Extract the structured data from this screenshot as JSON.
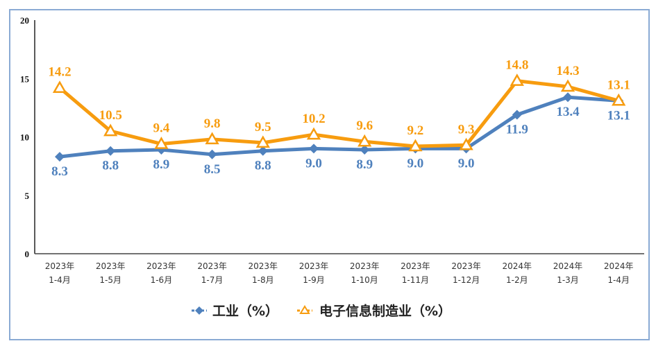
{
  "chart_data": {
    "type": "line",
    "title": "",
    "xlabel": "",
    "ylabel": "",
    "ylim": [
      0,
      20
    ],
    "yticks": [
      "0",
      "5",
      "10",
      "15",
      "20"
    ],
    "grid": false,
    "legend_position": "bottom",
    "categories": [
      [
        "2023年",
        "1-4月"
      ],
      [
        "2023年",
        "1-5月"
      ],
      [
        "2023年",
        "1-6月"
      ],
      [
        "2023年",
        "1-7月"
      ],
      [
        "2023年",
        "1-8月"
      ],
      [
        "2023年",
        "1-9月"
      ],
      [
        "2023年",
        "1-10月"
      ],
      [
        "2023年",
        "1-11月"
      ],
      [
        "2023年",
        "1-12月"
      ],
      [
        "2024年",
        "1-2月"
      ],
      [
        "2024年",
        "1-3月"
      ],
      [
        "2024年",
        "1-4月"
      ]
    ],
    "series": [
      {
        "name": "工业（%）",
        "color": "#4f81bd",
        "marker": "diamond",
        "values": [
          8.3,
          8.8,
          8.9,
          8.5,
          8.8,
          9.0,
          8.9,
          9.0,
          9.0,
          11.9,
          13.4,
          13.1
        ],
        "labels": [
          "8.3",
          "8.8",
          "8.9",
          "8.5",
          "8.8",
          "9.0",
          "8.9",
          "9.0",
          "9.0",
          "11.9",
          "13.4",
          "13.1"
        ]
      },
      {
        "name": "电子信息制造业（%）",
        "color": "#f79c0f",
        "marker": "triangle",
        "values": [
          14.2,
          10.5,
          9.4,
          9.8,
          9.5,
          10.2,
          9.6,
          9.2,
          9.3,
          14.8,
          14.3,
          13.1
        ],
        "labels": [
          "14.2",
          "10.5",
          "9.4",
          "9.8",
          "9.5",
          "10.2",
          "9.6",
          "9.2",
          "9.3",
          "14.8",
          "14.3",
          "13.1"
        ]
      }
    ]
  }
}
